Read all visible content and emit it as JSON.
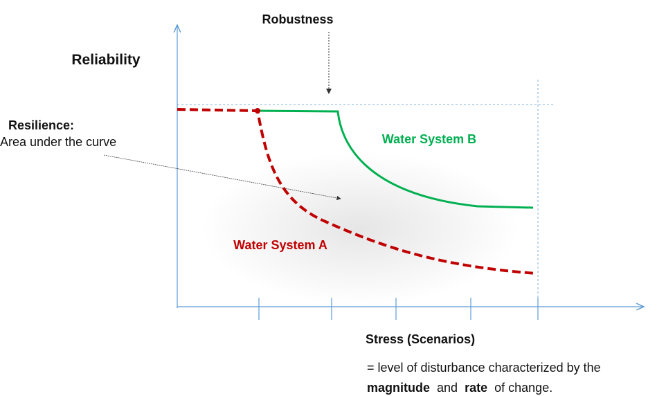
{
  "labels": {
    "robustness": "Robustness",
    "reliability": "Reliability",
    "resilience_title": "Resilience:",
    "resilience_text": "Area under the curve",
    "system_b": "Water System B",
    "system_a": "Water System A",
    "stress": "Stress (Scenarios)"
  },
  "description": {
    "line1": "= level of disturbance characterized by the",
    "line2": [
      "magnitude",
      "and",
      "rate",
      "of change."
    ]
  }
}
